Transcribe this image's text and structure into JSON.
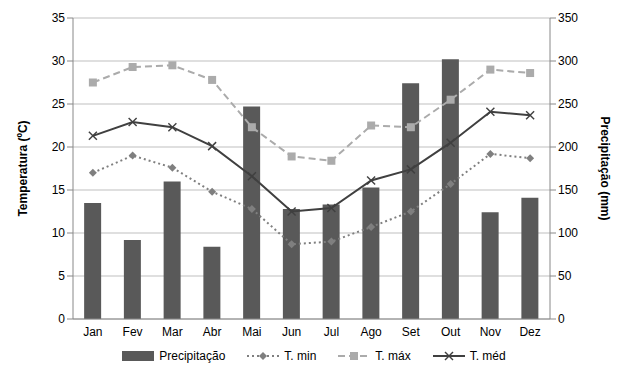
{
  "chart_data": {
    "type": "combo",
    "categories": [
      "Jan",
      "Fev",
      "Mar",
      "Abr",
      "Mai",
      "Jun",
      "Jul",
      "Ago",
      "Set",
      "Out",
      "Nov",
      "Dez"
    ],
    "y_label": "Temperatura (ºC)",
    "y2_label": "Precipitação (mm)",
    "ylim": [
      0,
      35
    ],
    "yticks": [
      0,
      5,
      10,
      15,
      20,
      25,
      30,
      35
    ],
    "y2lim": [
      0,
      350
    ],
    "y2ticks": [
      0,
      50,
      100,
      150,
      200,
      250,
      300,
      350
    ],
    "grid": true,
    "legend": "bottom",
    "series": [
      {
        "name": "Precipitação",
        "type": "bar",
        "axis": "y2",
        "color": "#595959",
        "values": [
          135,
          92,
          160,
          84,
          247,
          128,
          133,
          153,
          274,
          302,
          124,
          141
        ]
      },
      {
        "name": "T. min",
        "type": "line",
        "color": "#7f7f7f",
        "marker": "diamond",
        "line_style": "dotted",
        "values": [
          17,
          19,
          17.6,
          14.8,
          12.8,
          8.7,
          9,
          10.7,
          12.5,
          15.7,
          19.2,
          18.7
        ]
      },
      {
        "name": "T. máx",
        "type": "line",
        "color": "#ababab",
        "marker": "square",
        "line_style": "dashed",
        "values": [
          27.5,
          29.3,
          29.5,
          27.8,
          22.3,
          18.9,
          18.4,
          22.5,
          22.3,
          25.5,
          29,
          28.6
        ]
      },
      {
        "name": "T. méd",
        "type": "line",
        "color": "#404040",
        "marker": "x",
        "line_style": "solid",
        "values": [
          21.3,
          22.9,
          22.3,
          20.1,
          16.6,
          12.5,
          12.9,
          16.1,
          17.4,
          20.5,
          24.1,
          23.7
        ]
      }
    ]
  }
}
